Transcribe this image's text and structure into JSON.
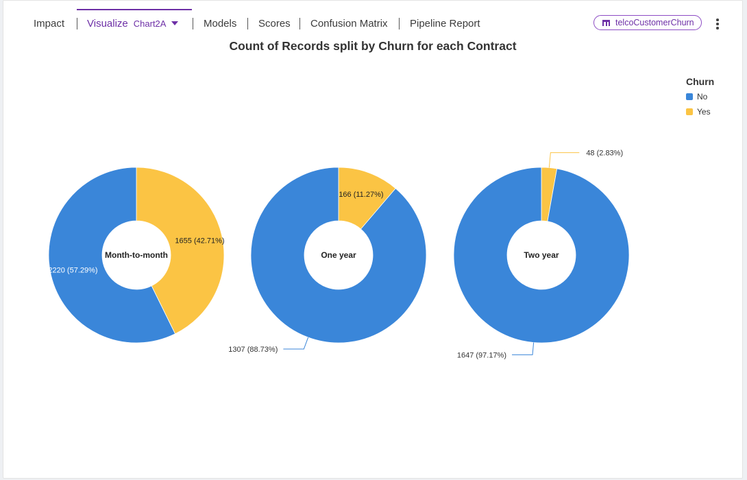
{
  "tabs": [
    {
      "label": "Impact"
    },
    {
      "label": "Visualize",
      "sub": "Chart2A"
    },
    {
      "label": "Models"
    },
    {
      "label": "Scores"
    },
    {
      "label": "Confusion Matrix"
    },
    {
      "label": "Pipeline Report"
    }
  ],
  "dataset_chip": {
    "label": "telcoCustomerChurn"
  },
  "colors": {
    "accent": "#6d2fa6",
    "No": "#3a86d9",
    "Yes": "#fbc444"
  },
  "chart_data": {
    "type": "pie",
    "subtype": "donut",
    "title": "Count of Records split by Churn for each Contract",
    "legend": {
      "title": "Churn",
      "position": "top-right",
      "entries": [
        "No",
        "Yes"
      ]
    },
    "pies": [
      {
        "name": "Month-to-month",
        "slices": [
          {
            "label": "No",
            "value": 2220,
            "pct": "57.29%"
          },
          {
            "label": "Yes",
            "value": 1655,
            "pct": "42.71%"
          }
        ]
      },
      {
        "name": "One year",
        "slices": [
          {
            "label": "No",
            "value": 1307,
            "pct": "88.73%"
          },
          {
            "label": "Yes",
            "value": 166,
            "pct": "11.27%"
          }
        ]
      },
      {
        "name": "Two year",
        "slices": [
          {
            "label": "No",
            "value": 1647,
            "pct": "97.17%"
          },
          {
            "label": "Yes",
            "value": 48,
            "pct": "2.83%"
          }
        ]
      }
    ]
  }
}
